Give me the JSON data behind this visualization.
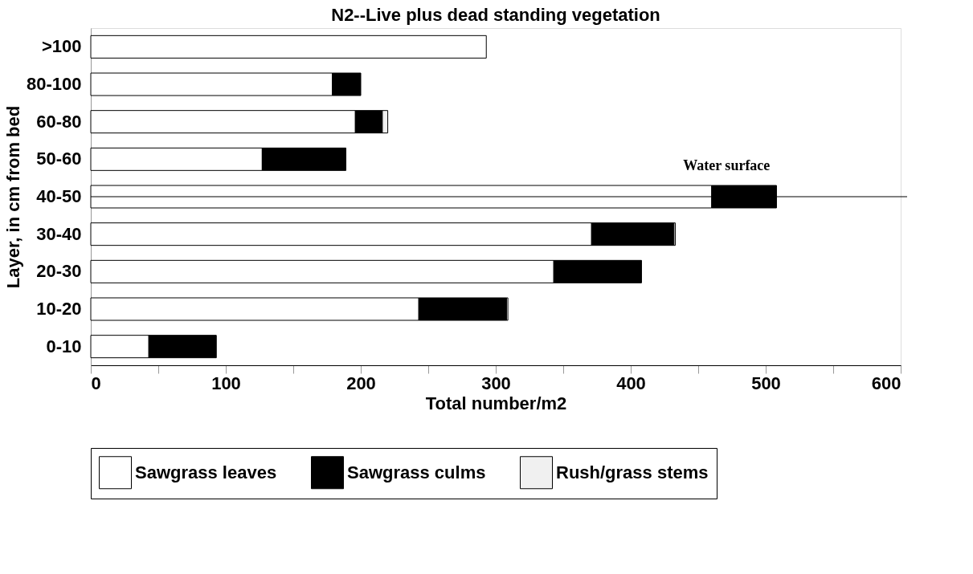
{
  "chart_data": {
    "type": "bar",
    "orientation": "horizontal",
    "stacked": true,
    "title": "N2--Live plus dead standing vegetation",
    "xlabel": "Total number/m2",
    "ylabel": "Layer, in cm from bed",
    "categories": [
      ">100",
      "80-100",
      "60-80",
      "50-60",
      "40-50",
      "30-40",
      "20-30",
      "10-20",
      "0-10"
    ],
    "series": [
      {
        "name": "Sawgrass leaves",
        "color": "#ffffff",
        "values": [
          293,
          179,
          196,
          127,
          460,
          371,
          343,
          243,
          43
        ]
      },
      {
        "name": "Sawgrass culms",
        "color": "#000000",
        "values": [
          null,
          21,
          20,
          62,
          48,
          61,
          65,
          65,
          50
        ]
      },
      {
        "name": "Rush/grass stems",
        "color": "#f0f0f0",
        "values": [
          null,
          null,
          4,
          null,
          null,
          1,
          null,
          1,
          null
        ]
      }
    ],
    "xlim": [
      0,
      600
    ],
    "xticks": [
      0,
      {
        "value": 50,
        "label": null
      },
      100,
      {
        "value": 150,
        "label": null
      },
      200,
      {
        "value": 250,
        "label": null
      },
      300,
      {
        "value": 350,
        "label": null
      },
      400,
      {
        "value": 450,
        "label": null
      },
      500,
      {
        "value": 550,
        "label": null
      },
      600
    ],
    "ref_lines": [
      {
        "axis": "y",
        "value": "40-50",
        "label": "Water surface",
        "color": "#000000"
      }
    ],
    "grid": false,
    "legend": "bottom"
  }
}
